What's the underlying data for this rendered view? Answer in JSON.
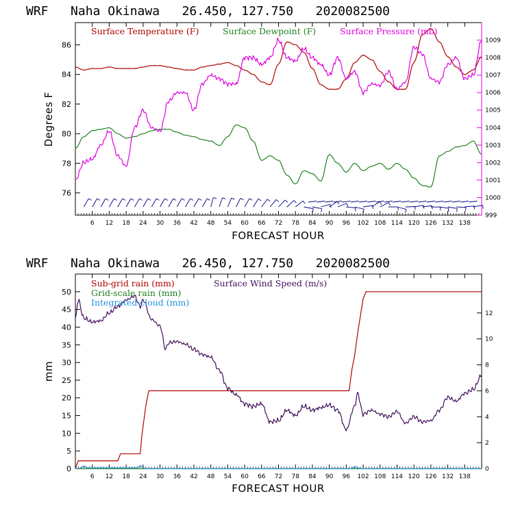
{
  "chart_data": [
    {
      "type": "line",
      "title": "WRF   Naha Okinawa   26.450, 127.750   2020082500",
      "xlabel": "FORECAST HOUR",
      "ylabel": "Degrees F",
      "xlim": [
        0,
        144
      ],
      "ylim": [
        74.5,
        87.5
      ],
      "y2lim": [
        999,
        1010
      ],
      "xticks": [
        6,
        12,
        18,
        24,
        30,
        36,
        42,
        48,
        54,
        60,
        66,
        72,
        78,
        84,
        90,
        96,
        102,
        108,
        114,
        120,
        126,
        132,
        138
      ],
      "yticks": [
        76,
        78,
        80,
        82,
        84,
        86
      ],
      "y2ticks": [
        999,
        1000,
        1001,
        1002,
        1003,
        1004,
        1005,
        1006,
        1007,
        1008,
        1009
      ],
      "legend_position": "top",
      "series": [
        {
          "name": "Surface Temperature (F)",
          "color": "#b00000",
          "axis": "left",
          "x": [
            0,
            3,
            6,
            9,
            12,
            15,
            18,
            21,
            24,
            27,
            30,
            33,
            36,
            39,
            42,
            45,
            48,
            51,
            54,
            57,
            60,
            63,
            66,
            69,
            72,
            75,
            78,
            81,
            84,
            87,
            90,
            93,
            96,
            99,
            102,
            105,
            108,
            111,
            114,
            117,
            120,
            123,
            126,
            129,
            132,
            135,
            138,
            141,
            144
          ],
          "y": [
            84.5,
            84.3,
            84.4,
            84.4,
            84.5,
            84.4,
            84.4,
            84.4,
            84.5,
            84.6,
            84.6,
            84.5,
            84.4,
            84.3,
            84.3,
            84.5,
            84.6,
            84.7,
            84.8,
            84.6,
            84.3,
            84.0,
            83.5,
            83.3,
            84.7,
            86.2,
            86.0,
            85.5,
            84.4,
            83.3,
            83.0,
            83.0,
            83.7,
            84.8,
            85.3,
            85.0,
            84.2,
            83.5,
            83.0,
            83.0,
            84.8,
            86.7,
            87.1,
            86.2,
            85.2,
            84.5,
            84.0,
            84.3,
            85.2
          ]
        },
        {
          "name": "Surface Dewpoint (F)",
          "color": "#208020",
          "axis": "left",
          "x": [
            0,
            3,
            6,
            9,
            12,
            15,
            18,
            21,
            24,
            27,
            30,
            33,
            36,
            39,
            42,
            45,
            48,
            51,
            54,
            57,
            60,
            63,
            66,
            69,
            72,
            75,
            78,
            81,
            84,
            87,
            90,
            93,
            96,
            99,
            102,
            105,
            108,
            111,
            114,
            117,
            120,
            123,
            126,
            129,
            132,
            135,
            138,
            141,
            144
          ],
          "y": [
            79.0,
            79.8,
            80.2,
            80.3,
            80.4,
            80.0,
            79.7,
            79.8,
            80.0,
            80.2,
            80.3,
            80.3,
            80.1,
            79.9,
            79.8,
            79.6,
            79.5,
            79.2,
            79.8,
            80.6,
            80.4,
            79.5,
            78.2,
            78.5,
            78.2,
            77.2,
            76.6,
            77.5,
            77.3,
            76.8,
            78.6,
            78.0,
            77.4,
            78.0,
            77.5,
            77.8,
            78.0,
            77.6,
            78.0,
            77.6,
            77.0,
            76.5,
            76.4,
            78.5,
            78.8,
            79.1,
            79.2,
            79.5,
            78.6
          ]
        },
        {
          "name": "Surface Pressure (mb)",
          "color": "#e000e0",
          "axis": "right",
          "x": [
            0,
            3,
            6,
            9,
            12,
            15,
            18,
            21,
            24,
            27,
            30,
            33,
            36,
            39,
            42,
            45,
            48,
            51,
            54,
            57,
            60,
            63,
            66,
            69,
            72,
            75,
            78,
            81,
            84,
            87,
            90,
            93,
            96,
            99,
            102,
            105,
            108,
            111,
            114,
            117,
            120,
            123,
            126,
            129,
            132,
            135,
            138,
            141,
            144
          ],
          "y": [
            1001.0,
            1002.0,
            1002.2,
            1003.0,
            1003.8,
            1002.4,
            1001.8,
            1004.0,
            1005.0,
            1004.0,
            1003.8,
            1005.5,
            1006.0,
            1006.0,
            1005.0,
            1006.5,
            1007.0,
            1006.8,
            1006.5,
            1006.5,
            1008.0,
            1008.0,
            1007.6,
            1008.0,
            1009.0,
            1008.0,
            1007.8,
            1008.5,
            1008.0,
            1007.6,
            1007.0,
            1008.0,
            1006.8,
            1007.2,
            1006.0,
            1006.5,
            1006.4,
            1007.2,
            1006.2,
            1006.6,
            1008.6,
            1008.2,
            1006.8,
            1006.6,
            1007.6,
            1008.0,
            1006.8,
            1007.0,
            1009.0
          ]
        }
      ],
      "wind_barbs": {
        "color": "#000080"
      }
    },
    {
      "type": "line",
      "title": "WRF   Naha Okinawa   26.450, 127.750   2020082500",
      "xlabel": "FORECAST HOUR",
      "ylabel": "mm",
      "xlim": [
        0,
        144
      ],
      "ylim": [
        0,
        55
      ],
      "y2lim": [
        0,
        15
      ],
      "xticks": [
        6,
        12,
        18,
        24,
        30,
        36,
        42,
        48,
        54,
        60,
        66,
        72,
        78,
        84,
        90,
        96,
        102,
        108,
        114,
        120,
        126,
        132,
        138
      ],
      "yticks": [
        0,
        5,
        10,
        15,
        20,
        25,
        30,
        35,
        40,
        45,
        50
      ],
      "y2ticks": [
        0,
        2,
        4,
        6,
        8,
        10,
        12
      ],
      "legend_position": "top-left",
      "series": [
        {
          "name": "Sub-grid rain (mm)",
          "color": "#b00000",
          "axis": "left",
          "x": [
            0,
            1,
            15,
            16,
            23,
            23.5,
            25,
            26,
            97,
            98,
            99,
            100,
            102,
            103,
            144
          ],
          "y": [
            0,
            2.2,
            2.2,
            4.2,
            4.2,
            9,
            18,
            22,
            22,
            28,
            32,
            38,
            48,
            50,
            50
          ]
        },
        {
          "name": "Grid-scale rain (mm)",
          "color": "#208020",
          "axis": "left",
          "x": [
            0,
            144
          ],
          "y": [
            0,
            0
          ]
        },
        {
          "name": "Integrated cloud (mm)",
          "color": "#2090e0",
          "axis": "left",
          "x": [
            0,
            2,
            3,
            4,
            22,
            23,
            24,
            25,
            98,
            99,
            100,
            101,
            144
          ],
          "y": [
            0,
            0.2,
            0.8,
            0.2,
            0.2,
            0.9,
            0.3,
            0,
            0,
            0.6,
            0.3,
            0,
            0
          ]
        },
        {
          "name": "Surface Wind Speed (m/s)",
          "color": "#40105a",
          "axis": "right",
          "x": [
            0,
            1,
            3,
            6,
            9,
            12,
            15,
            18,
            21,
            23,
            24,
            27,
            30,
            32,
            33,
            36,
            39,
            42,
            45,
            48,
            51,
            54,
            57,
            60,
            63,
            66,
            69,
            72,
            75,
            78,
            81,
            84,
            87,
            90,
            93,
            96,
            99,
            100,
            102,
            105,
            108,
            111,
            114,
            117,
            120,
            123,
            126,
            129,
            132,
            135,
            138,
            141,
            144
          ],
          "y": [
            11.5,
            13.0,
            11.6,
            11.3,
            11.4,
            12.0,
            12.5,
            13.0,
            13.3,
            12.5,
            13.0,
            11.5,
            11.0,
            9.2,
            9.7,
            9.8,
            9.6,
            9.2,
            8.8,
            8.6,
            7.6,
            6.2,
            5.7,
            5.0,
            4.8,
            5.0,
            3.6,
            3.7,
            4.5,
            4.1,
            4.8,
            4.5,
            4.7,
            4.9,
            4.5,
            3.0,
            4.8,
            5.8,
            4.2,
            4.5,
            4.2,
            4.0,
            4.4,
            3.5,
            4.0,
            3.6,
            3.7,
            4.5,
            5.5,
            5.2,
            5.8,
            6.1,
            7.2
          ]
        }
      ]
    }
  ]
}
